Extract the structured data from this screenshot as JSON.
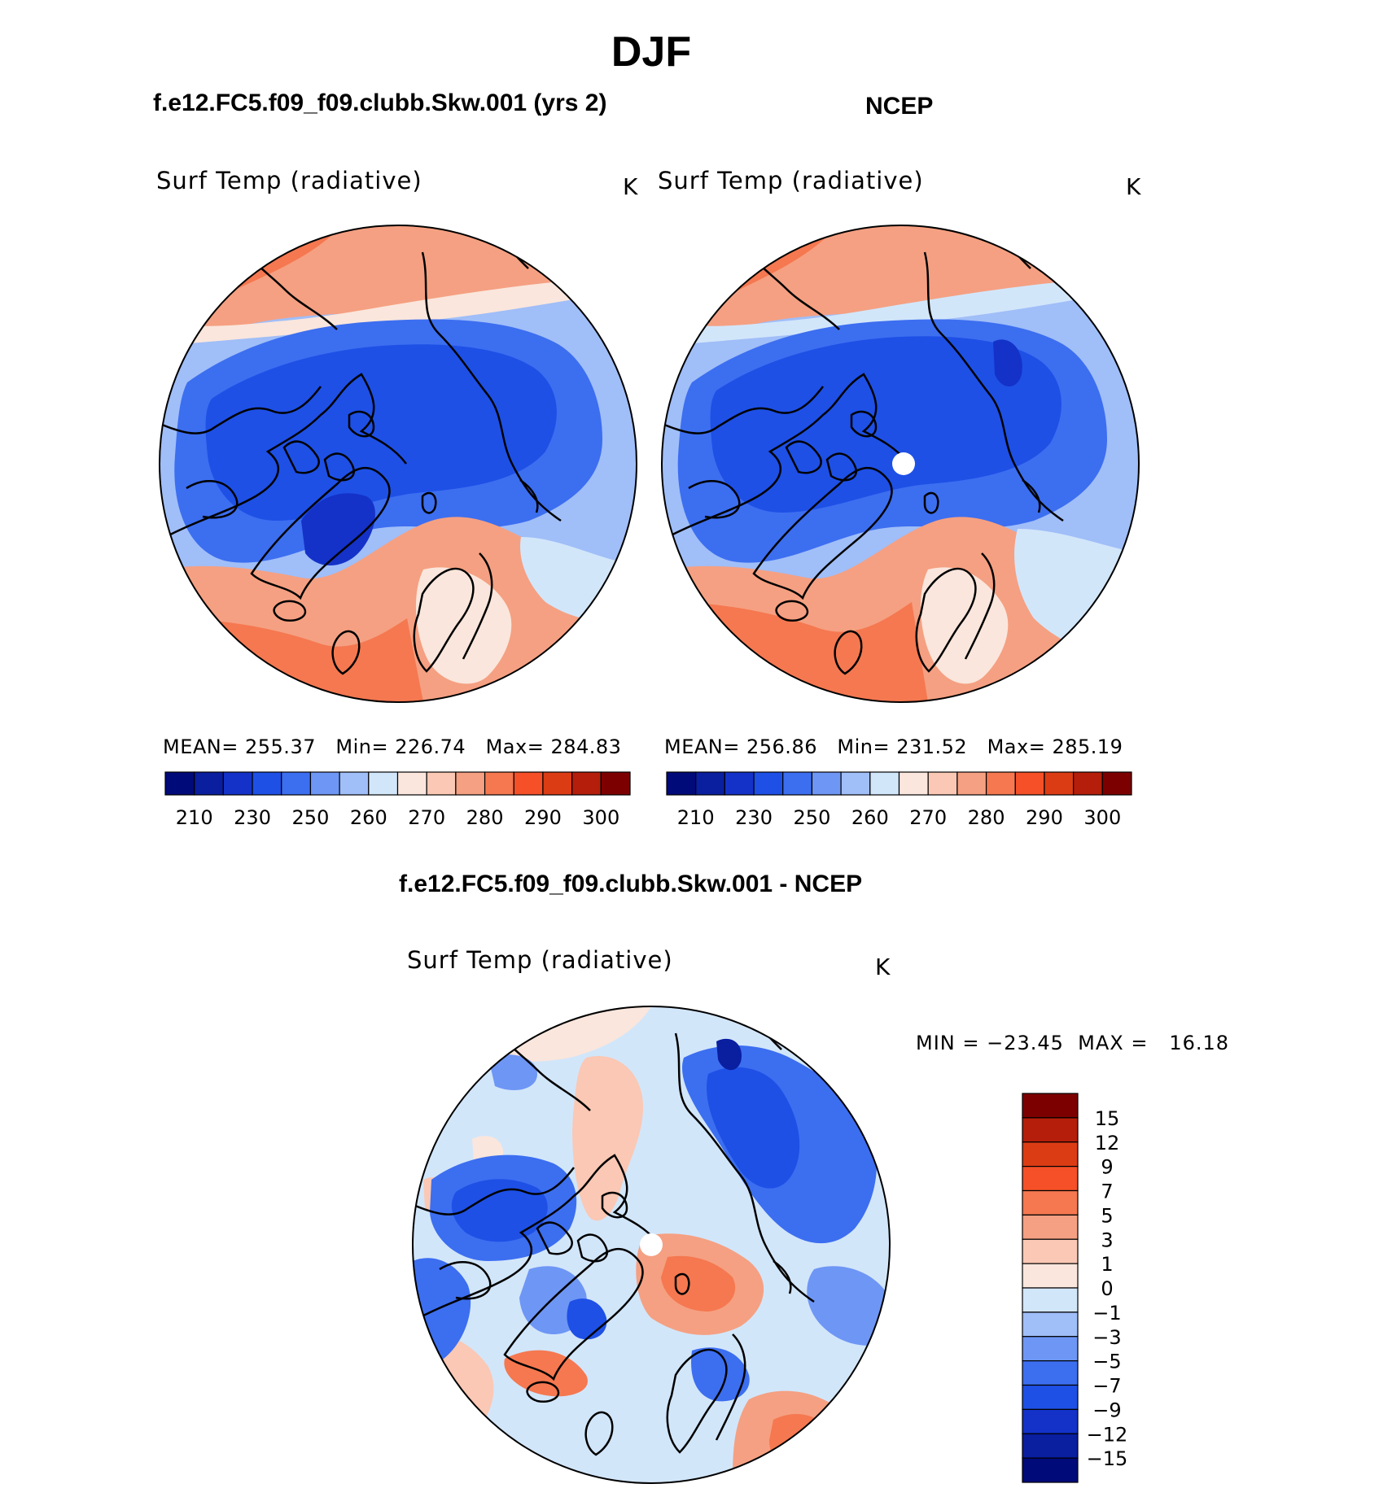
{
  "figure": {
    "season": "DJF"
  },
  "panels": [
    {
      "id": "model",
      "case_title": "f.e12.FC5.f09_f09.clubb.Skw.001 (yrs 2)",
      "variable": "Surf Temp (radiative)",
      "units": "K",
      "stats": {
        "mean_label": "MEAN=",
        "mean": "255.37",
        "min_label": "Min=",
        "min": "226.74",
        "max_label": "Max=",
        "max": "284.83"
      },
      "colorbar_ticks": [
        "210",
        "230",
        "250",
        "260",
        "270",
        "280",
        "290",
        "300"
      ]
    },
    {
      "id": "obs",
      "case_title": "NCEP",
      "variable": "Surf Temp (radiative)",
      "units": "K",
      "stats": {
        "mean_label": "MEAN=",
        "mean": "256.86",
        "min_label": "Min=",
        "min": "231.52",
        "max_label": "Max=",
        "max": "285.19"
      },
      "colorbar_ticks": [
        "210",
        "230",
        "250",
        "260",
        "270",
        "280",
        "290",
        "300"
      ]
    }
  ],
  "difference": {
    "title": "f.e12.FC5.f09_f09.clubb.Skw.001 - NCEP",
    "variable": "Surf Temp (radiative)",
    "units": "K",
    "minmax": "MIN = −23.45  MAX =   16.18",
    "colorbar_labels": [
      "15",
      "12",
      "9",
      "7",
      "5",
      "3",
      "1",
      "0",
      "−1",
      "−3",
      "−5",
      "−7",
      "−9",
      "−12",
      "−15"
    ]
  },
  "palettes": {
    "absolute": [
      "#000a78",
      "#0a1ea0",
      "#1432c8",
      "#1e50e6",
      "#3c6ef0",
      "#6e96f5",
      "#a0bef8",
      "#d2e6fa",
      "#fae6dc",
      "#fac8b4",
      "#f5a082",
      "#f57850",
      "#f55028",
      "#dc3c14",
      "#b41e0a",
      "#7d0000"
    ],
    "difference": [
      "#7d0000",
      "#b41e0a",
      "#dc3c14",
      "#f55028",
      "#f57850",
      "#f5a082",
      "#fac8b4",
      "#fae6dc",
      "#d2e6fa",
      "#a0bef8",
      "#6e96f5",
      "#3c6ef0",
      "#1e50e6",
      "#1432c8",
      "#0a1ea0",
      "#000a78"
    ]
  }
}
